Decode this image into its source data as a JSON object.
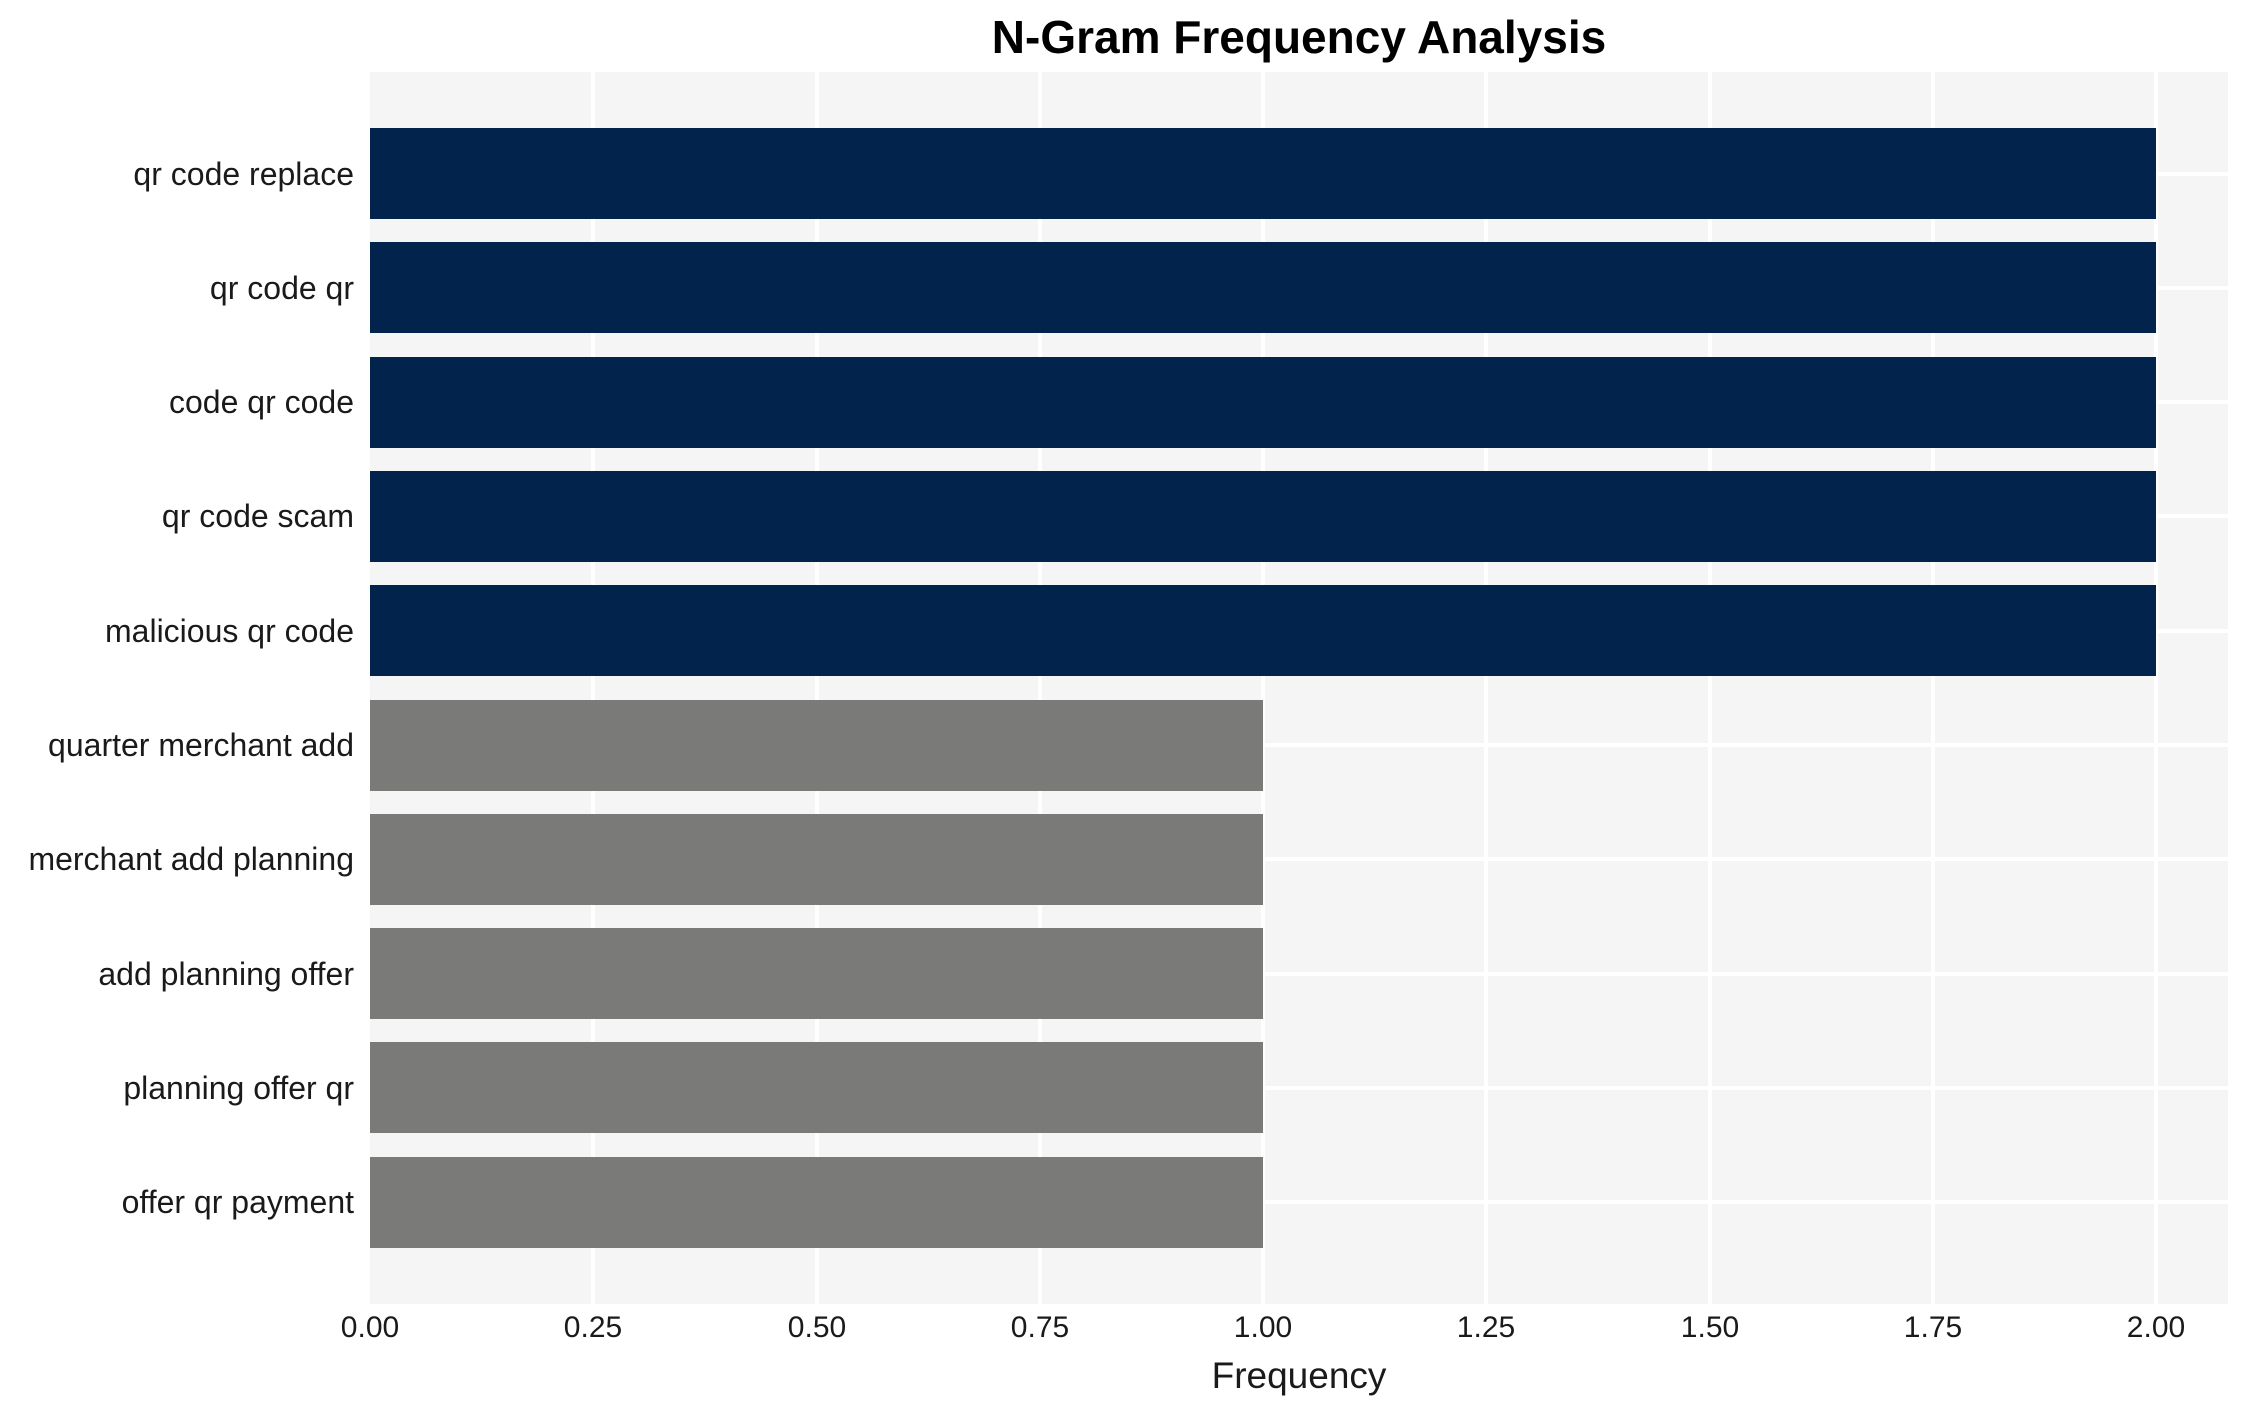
{
  "chart_data": {
    "type": "bar",
    "orientation": "horizontal",
    "title": "N-Gram Frequency Analysis",
    "xlabel": "Frequency",
    "ylabel": "",
    "categories": [
      "qr code replace",
      "qr code qr",
      "code qr code",
      "qr code scam",
      "malicious qr code",
      "quarter merchant add",
      "merchant add planning",
      "add planning offer",
      "planning offer qr",
      "offer qr payment"
    ],
    "values": [
      2,
      2,
      2,
      2,
      2,
      1,
      1,
      1,
      1,
      1
    ],
    "bar_colors": [
      "#02244c",
      "#02244c",
      "#02244c",
      "#02244c",
      "#02244c",
      "#7a7a78",
      "#7a7a78",
      "#7a7a78",
      "#7a7a78",
      "#7a7a78"
    ],
    "xticks": [
      {
        "value": 0.0,
        "label": "0.00"
      },
      {
        "value": 0.25,
        "label": "0.25"
      },
      {
        "value": 0.5,
        "label": "0.50"
      },
      {
        "value": 0.75,
        "label": "0.75"
      },
      {
        "value": 1.0,
        "label": "1.00"
      },
      {
        "value": 1.25,
        "label": "1.25"
      },
      {
        "value": 1.5,
        "label": "1.50"
      },
      {
        "value": 1.75,
        "label": "1.75"
      },
      {
        "value": 2.0,
        "label": "2.00"
      }
    ],
    "xlim": [
      0,
      2.08
    ],
    "grid": true,
    "legend": false,
    "colors": {
      "primary": "#02244c",
      "secondary": "#7a7a78",
      "plot_background": "#f5f5f6",
      "gridline": "#ffffff",
      "text": "#1a1a1a",
      "title_text": "#000000"
    }
  }
}
